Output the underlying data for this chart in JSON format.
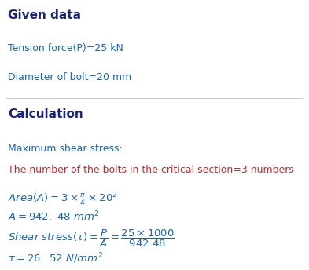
{
  "bg_color": "#ffffff",
  "heading1": "Given data",
  "heading1_color": "#1a237e",
  "given_line1": "Tension force(P)=25 kN",
  "given_line2": "Diameter of bolt=20 mm",
  "given_text_color": "#1565c0",
  "heading2": "Calculation",
  "heading2_color": "#1a237e",
  "calc_line1": "Maximum shear stress:",
  "calc_line1_color": "#1565c0",
  "calc_line2": "The number of the bolts in the critical section=3 numbers",
  "calc_line2_color": "#c62828",
  "formula_color": "#1565c0",
  "divider_color": "#cccccc",
  "figw": 3.93,
  "figh": 3.44,
  "dpi": 100
}
